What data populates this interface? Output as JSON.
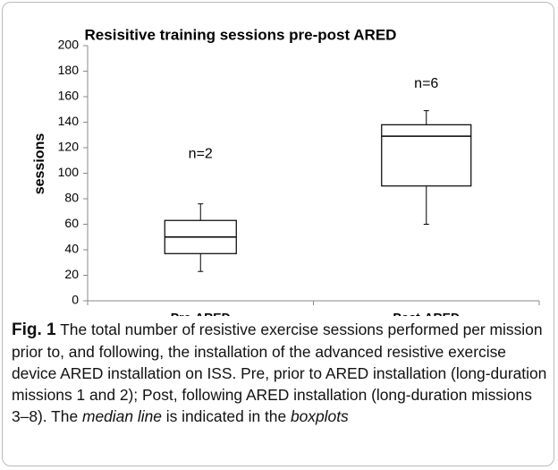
{
  "chart_data": {
    "type": "box",
    "title": "Resisitive training sessions pre-post ARED",
    "y_label": "sessions",
    "categories": [
      "Pre-ARED",
      "Post-ARED"
    ],
    "boxes": [
      {
        "whislo": 23,
        "q1": 37,
        "med": 50,
        "q3": 63,
        "whishi": 76
      },
      {
        "whislo": 60,
        "q1": 90,
        "med": 129,
        "q3": 138,
        "whishi": 149
      }
    ],
    "annotations": [
      "n=2",
      "n=6"
    ],
    "color": "#000000",
    "ylim": [
      0,
      200
    ],
    "yticks": [
      0,
      20,
      40,
      60,
      80,
      100,
      120,
      140,
      160,
      180,
      200
    ]
  },
  "caption": {
    "label": "Fig. 1",
    "parts": [
      "The total number of resistive exercise sessions performed per mission prior to, and following, the installation of the advanced resistive exercise device ARED installation on ISS. Pre, prior to ARED installation (long-duration missions 1 and 2); Post, following ARED installation (long-duration missions 3–8). The ",
      "median line",
      " is indicated in the ",
      "boxplots"
    ]
  }
}
